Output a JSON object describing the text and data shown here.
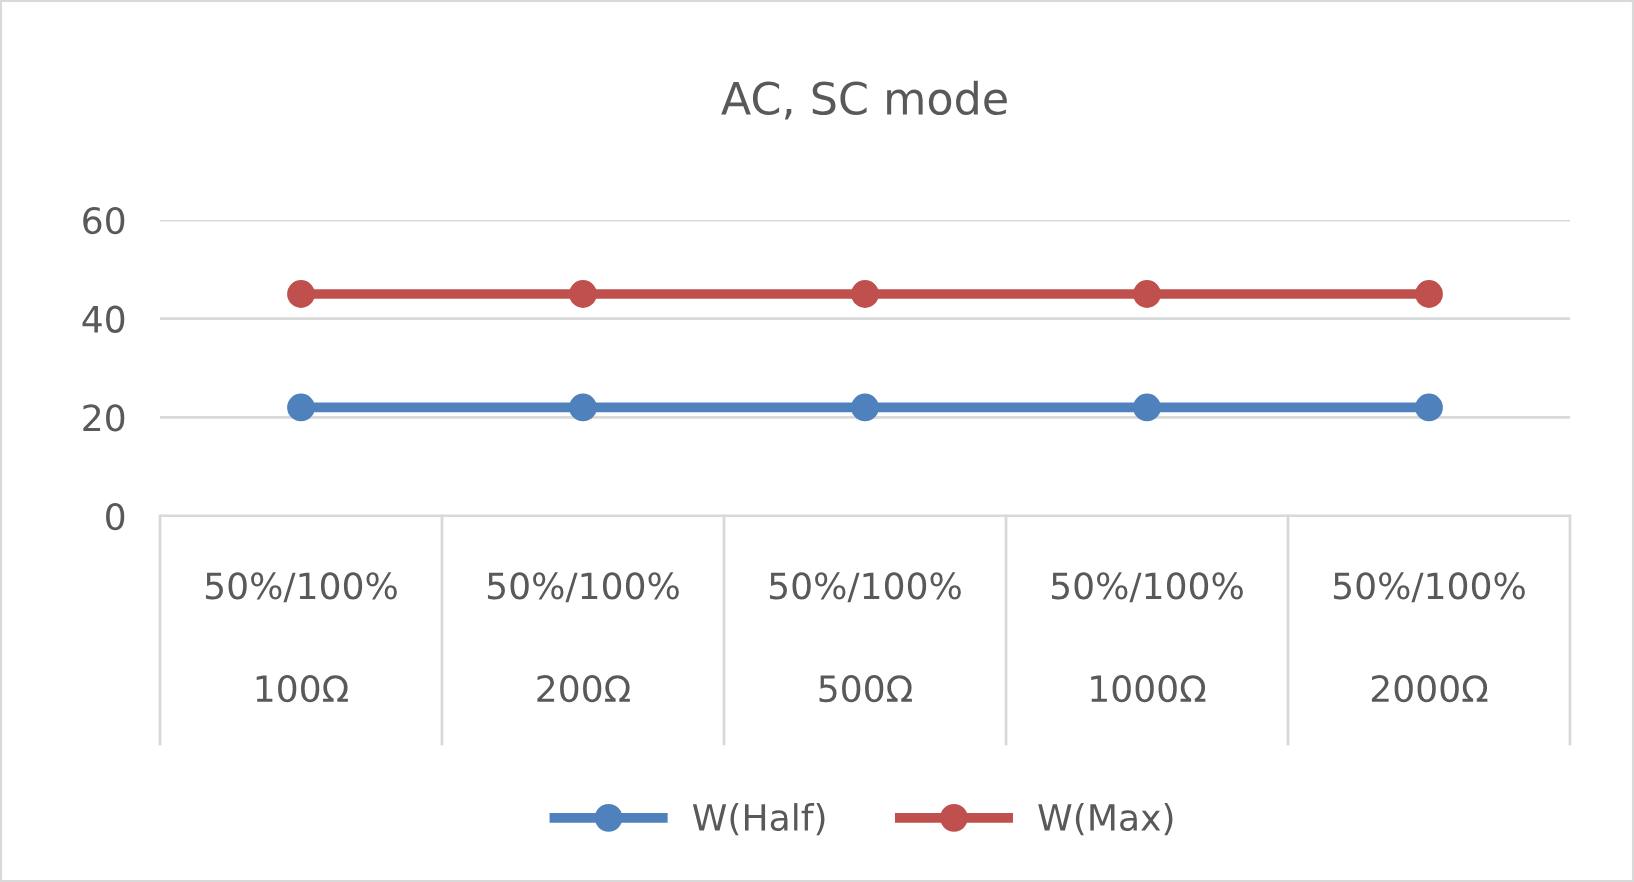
{
  "chart_data": {
    "type": "line",
    "title": "AC, SC mode",
    "categories": [
      "50%/100%\n\n100Ω",
      "50%/100%\n\n200Ω",
      "50%/100%\n\n500Ω",
      "50%/100%\n\n1000Ω",
      "50%/100%\n\n2000Ω"
    ],
    "series": [
      {
        "name": "W(Half)",
        "color": "#4f81bd",
        "values": [
          22,
          22,
          22,
          22,
          22
        ]
      },
      {
        "name": "W(Max)",
        "color": "#c0504d",
        "values": [
          45,
          45,
          45,
          45,
          45
        ]
      }
    ],
    "ylim": [
      0,
      60
    ],
    "yticks": [
      0,
      20,
      40,
      60
    ],
    "grid": "y",
    "legend": "bottom",
    "marker": "circle",
    "line_style": "solid"
  }
}
